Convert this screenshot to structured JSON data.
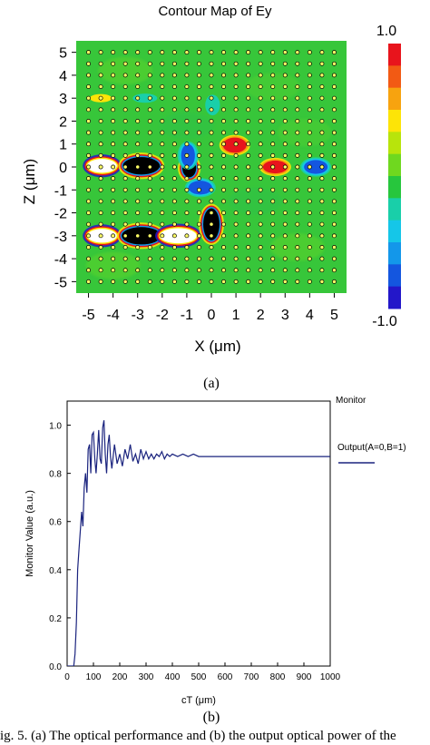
{
  "chart_data": [
    {
      "type": "heatmap",
      "title": "Contour Map of Ey",
      "xlabel": "X (μm)",
      "ylabel": "Z (μm)",
      "xlim": [
        -5.5,
        5.5
      ],
      "ylim": [
        -5.5,
        5.5
      ],
      "x_ticks": [
        "-5",
        "-4",
        "-3",
        "-2",
        "-1",
        "0",
        "1",
        "2",
        "3",
        "4",
        "5"
      ],
      "y_ticks": [
        "5",
        "4",
        "3",
        "2",
        "1",
        "0",
        "-1",
        "-2",
        "-3",
        "-4",
        "-5"
      ],
      "colorbar": {
        "max_label": "1.0",
        "min_label": "-1.0",
        "range": [
          -1,
          1
        ],
        "colors": [
          "#e8141c",
          "#f25a14",
          "#f7a30f",
          "#fde407",
          "#b8e40b",
          "#6fd81f",
          "#27c63d",
          "#19cfa9",
          "#15c6e8",
          "#1397ea",
          "#1456df",
          "#2317c9"
        ]
      },
      "background_level": 0.0,
      "rod_lattice": {
        "x_range": [
          -5,
          5
        ],
        "z_range": [
          -5,
          5
        ],
        "pitch": 0.5
      },
      "features": [
        {
          "x": -4.45,
          "z": 0.05,
          "rx": 0.6,
          "rz": 0.3,
          "level": "saturated_positive",
          "color": "#ffffff"
        },
        {
          "x": -2.85,
          "z": 0.05,
          "rx": 0.75,
          "rz": 0.38,
          "level": "saturated_negative",
          "color": "#000000"
        },
        {
          "x": -4.45,
          "z": -3.0,
          "rx": 0.6,
          "rz": 0.3,
          "level": "saturated_positive",
          "color": "#ffffff"
        },
        {
          "x": -2.85,
          "z": -3.0,
          "rx": 0.8,
          "rz": 0.38,
          "level": "saturated_negative",
          "color": "#000000"
        },
        {
          "x": -1.35,
          "z": -3.0,
          "rx": 0.75,
          "rz": 0.33,
          "level": "saturated_positive",
          "color": "#ffffff"
        },
        {
          "x": 0.0,
          "z": -2.5,
          "rx": 0.33,
          "rz": 0.7,
          "level": "saturated_negative",
          "color": "#000000"
        },
        {
          "x": -0.9,
          "z": -0.05,
          "rx": 0.28,
          "rz": 0.4,
          "level": "saturated_negative",
          "color": "#000000"
        },
        {
          "x": -0.95,
          "z": 0.5,
          "rx": 0.28,
          "rz": 0.5,
          "level": -0.9,
          "color": "#1456df"
        },
        {
          "x": -0.45,
          "z": -0.9,
          "rx": 0.48,
          "rz": 0.3,
          "level": -0.9,
          "color": "#1456df"
        },
        {
          "x": 4.25,
          "z": 0.0,
          "rx": 0.48,
          "rz": 0.3,
          "level": -0.8,
          "color": "#1456df"
        },
        {
          "x": 0.95,
          "z": 0.95,
          "rx": 0.48,
          "rz": 0.33,
          "level": 0.9,
          "color": "#e8141c"
        },
        {
          "x": 2.6,
          "z": 0.0,
          "rx": 0.5,
          "rz": 0.28,
          "level": 0.9,
          "color": "#e8141c"
        },
        {
          "x": -4.5,
          "z": 3.0,
          "rx": 0.45,
          "rz": 0.18,
          "level": 0.3,
          "color": "#fde407"
        },
        {
          "x": -2.7,
          "z": 3.0,
          "rx": 0.5,
          "rz": 0.2,
          "level": -0.3,
          "color": "#19cfa9"
        },
        {
          "x": 0.05,
          "z": 2.7,
          "rx": 0.3,
          "rz": 0.45,
          "level": -0.2,
          "color": "#19cfa9"
        }
      ]
    },
    {
      "type": "line",
      "title": "",
      "xlabel": "cT (μm)",
      "ylabel": "Monitor Value (a.u.)",
      "xlim": [
        0,
        1000
      ],
      "ylim": [
        0,
        1.1
      ],
      "x_ticks": [
        "0",
        "100",
        "200",
        "300",
        "400",
        "500",
        "600",
        "700",
        "800",
        "900",
        "1000"
      ],
      "y_ticks": [
        "0.0",
        "0.2",
        "0.4",
        "0.6",
        "0.8",
        "1.0"
      ],
      "legend_title": "Monitor",
      "legend_position": "top-right",
      "series": [
        {
          "name": "Output(A=0,B=1)",
          "color": "#1a237e",
          "points": [
            [
              0,
              0
            ],
            [
              25,
              0.0
            ],
            [
              30,
              0.05
            ],
            [
              35,
              0.18
            ],
            [
              40,
              0.4
            ],
            [
              45,
              0.48
            ],
            [
              50,
              0.56
            ],
            [
              55,
              0.64
            ],
            [
              60,
              0.58
            ],
            [
              65,
              0.74
            ],
            [
              70,
              0.8
            ],
            [
              75,
              0.72
            ],
            [
              80,
              0.9
            ],
            [
              85,
              0.92
            ],
            [
              90,
              0.8
            ],
            [
              95,
              0.96
            ],
            [
              100,
              0.97
            ],
            [
              105,
              0.86
            ],
            [
              110,
              0.8
            ],
            [
              115,
              0.88
            ],
            [
              120,
              0.98
            ],
            [
              125,
              0.86
            ],
            [
              130,
              0.84
            ],
            [
              135,
              0.99
            ],
            [
              140,
              1.02
            ],
            [
              145,
              0.88
            ],
            [
              150,
              0.8
            ],
            [
              155,
              0.92
            ],
            [
              160,
              0.96
            ],
            [
              165,
              0.87
            ],
            [
              170,
              0.82
            ],
            [
              180,
              0.92
            ],
            [
              190,
              0.84
            ],
            [
              200,
              0.88
            ],
            [
              210,
              0.83
            ],
            [
              220,
              0.9
            ],
            [
              230,
              0.86
            ],
            [
              240,
              0.92
            ],
            [
              250,
              0.85
            ],
            [
              260,
              0.88
            ],
            [
              270,
              0.84
            ],
            [
              280,
              0.9
            ],
            [
              290,
              0.86
            ],
            [
              300,
              0.89
            ],
            [
              310,
              0.86
            ],
            [
              320,
              0.88
            ],
            [
              330,
              0.86
            ],
            [
              340,
              0.88
            ],
            [
              350,
              0.87
            ],
            [
              360,
              0.89
            ],
            [
              370,
              0.86
            ],
            [
              380,
              0.88
            ],
            [
              390,
              0.87
            ],
            [
              400,
              0.88
            ],
            [
              420,
              0.87
            ],
            [
              440,
              0.88
            ],
            [
              460,
              0.87
            ],
            [
              480,
              0.88
            ],
            [
              500,
              0.87
            ],
            [
              600,
              0.87
            ],
            [
              700,
              0.87
            ],
            [
              800,
              0.87
            ],
            [
              900,
              0.87
            ],
            [
              1000,
              0.87
            ]
          ]
        }
      ]
    }
  ],
  "labels": {
    "sub_a": "(a)",
    "sub_b": "(b)",
    "caption": "ig. 5.  (a) The optical performance and (b) the output optical power of the"
  }
}
